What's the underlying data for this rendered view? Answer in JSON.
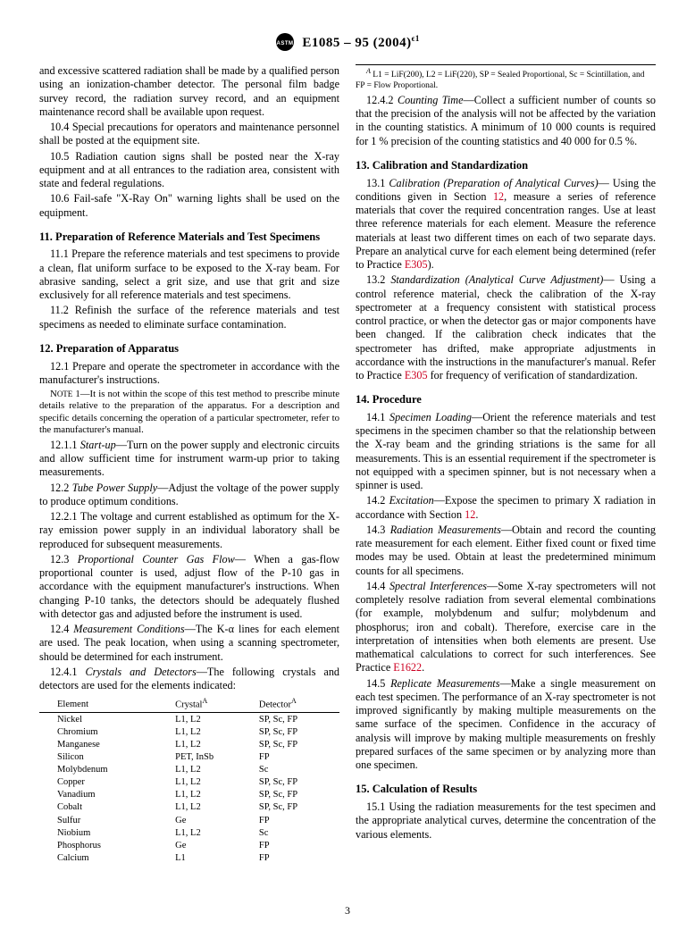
{
  "header": {
    "standard": "E1085 – 95  (2004)",
    "eps": "ϵ1"
  },
  "col1": {
    "intro1": "and excessive scattered radiation shall be made by a qualified person using an ionization-chamber detector. The personal film badge survey record, the radiation survey record, and an equipment maintenance record shall be available upon request.",
    "p104": "10.4 Special precautions for operators and maintenance personnel shall be posted at the equipment site.",
    "p105": "10.5 Radiation caution signs shall be posted near the X-ray equipment and at all entrances to the radiation area, consistent with state and federal regulations.",
    "p106": "10.6 Fail-safe \"X-Ray On\" warning lights shall be used on the equipment.",
    "s11title": "11.  Preparation of Reference Materials and Test Specimens",
    "p111": "11.1 Prepare the reference materials and test specimens to provide a clean, flat uniform surface to be exposed to the X-ray beam. For abrasive sanding, select a grit size, and use that grit and size exclusively for all reference materials and test specimens.",
    "p112": "11.2 Refinish the surface of the reference materials and test specimens as needed to eliminate surface contamination.",
    "s12title": "12.  Preparation of Apparatus",
    "p121": "12.1 Prepare and operate the spectrometer in accordance with the manufacturer's instructions.",
    "note1": "NOTE 1—It is not within the scope of this test method to prescribe minute details relative to the preparation of the apparatus. For a description and specific details concerning the operation of a particular spectrometer, refer to the manufacturer's manual.",
    "p1211i": "12.1.1 ",
    "p1211t": "Start-up",
    "p1211b": "—Turn on the power supply and electronic circuits and allow sufficient time for instrument warm-up prior to taking measurements.",
    "p122i": "12.2 ",
    "p122t": "Tube Power Supply",
    "p122b": "—Adjust the voltage of the power supply to produce optimum conditions.",
    "p1221": "12.2.1 The voltage and current established as optimum for the X-ray emission power supply in an individual laboratory shall be reproduced for subsequent measurements.",
    "p123i": "12.3 ",
    "p123t": "Proportional Counter Gas Flow",
    "p123b": "— When a gas-flow proportional counter is used, adjust flow of the P-10 gas in accordance with the equipment manufacturer's instructions. When changing P-10 tanks, the detectors should be adequately flushed with detector gas and adjusted before the instrument is used.",
    "p124i": "12.4 ",
    "p124t": "Measurement Conditions",
    "p124b": "—The K-α lines for each element are used. The peak location, when using a scanning spectrometer, should be determined for each instrument.",
    "p1241i": "12.4.1 ",
    "p1241t": "Crystals and Detectors",
    "p1241b": "—The following crystals and detectors are used for the elements indicated:"
  },
  "table": {
    "headers": [
      "Element",
      "Crystal",
      "Detector"
    ],
    "rows": [
      [
        "Nickel",
        "L1, L2",
        "SP, Sc, FP"
      ],
      [
        "Chromium",
        "L1, L2",
        "SP, Sc, FP"
      ],
      [
        "Manganese",
        "L1, L2",
        "SP, Sc, FP"
      ],
      [
        "Silicon",
        "PET, InSb",
        "FP"
      ],
      [
        "Molybdenum",
        "L1, L2",
        "Sc"
      ],
      [
        "Copper",
        "L1, L2",
        "SP, Sc, FP"
      ],
      [
        "Vanadium",
        "L1, L2",
        "SP, Sc, FP"
      ],
      [
        "Cobalt",
        "L1, L2",
        "SP, Sc, FP"
      ],
      [
        "Sulfur",
        "Ge",
        "FP"
      ],
      [
        "Niobium",
        "L1, L2",
        "Sc"
      ],
      [
        "Phosphorus",
        "Ge",
        "FP"
      ],
      [
        "Calcium",
        "L1",
        "FP"
      ]
    ]
  },
  "col2": {
    "footA": " L1 = LiF(200), L2 = LiF(220), SP = Sealed Proportional, Sc = Scintillation, and FP = Flow Proportional.",
    "p1242i": "12.4.2 ",
    "p1242t": "Counting Time",
    "p1242b": "—Collect a sufficient number of counts so that the precision of the analysis will not be affected by the variation in the counting statistics. A minimum of 10 000 counts is required for 1 % precision of the counting statistics and 40 000 for 0.5 %.",
    "s13title": "13.  Calibration and Standardization",
    "p131i": "13.1 ",
    "p131t": "Calibration (Preparation of Analytical Curves)",
    "p131a": "— Using the conditions given in Section ",
    "p131l1": "12",
    "p131b": ", measure a series of reference materials that cover the required concentration ranges. Use at least three reference materials for each element. Measure the reference materials at least two different times on each of two separate days. Prepare an analytical curve for each element being determined (refer to Practice ",
    "p131l2": "E305",
    "p131c": ").",
    "p132i": "13.2 ",
    "p132t": "Standardization (Analytical Curve Adjustment)",
    "p132a": "— Using a control reference material, check the calibration of the X-ray spectrometer at a frequency consistent with statistical process control practice, or when the detector gas or major components have been changed. If the calibration check indicates that the spectrometer has drifted, make appropriate adjustments in accordance with the instructions in the manufacturer's manual. Refer to Practice ",
    "p132l": "E305",
    "p132b": " for frequency of verification of standardization.",
    "s14title": "14.  Procedure",
    "p141i": "14.1 ",
    "p141t": "Specimen Loading",
    "p141b": "—Orient the reference materials and test specimens in the specimen chamber so that the relationship between the X-ray beam and the grinding striations is the same for all measurements. This is an essential requirement if the spectrometer is not equipped with a specimen spinner, but is not necessary when a spinner is used.",
    "p142i": "14.2 ",
    "p142t": "Excitation",
    "p142a": "—Expose the specimen to primary X radiation in accordance with Section ",
    "p142l": "12",
    "p142b": ".",
    "p143i": "14.3 ",
    "p143t": "Radiation Measurements",
    "p143b": "—Obtain and record the counting rate measurement for each element. Either fixed count or fixed time modes may be used. Obtain at least the predetermined minimum counts for all specimens.",
    "p144i": "14.4 ",
    "p144t": "Spectral Interferences",
    "p144a": "—Some X-ray spectrometers will not completely resolve radiation from several elemental combinations (for example, molybdenum and sulfur; molybdenum and phosphorus; iron and cobalt). Therefore, exercise care in the interpretation of intensities when both elements are present. Use mathematical calculations to correct for such interferences. See Practice ",
    "p144l": "E1622",
    "p144b": ".",
    "p145i": "14.5 ",
    "p145t": "Replicate Measurements",
    "p145b": "—Make a single measurement on each test specimen. The performance of an X-ray spectrometer is not improved significantly by making multiple measurements on the same surface of the specimen. Confidence in the accuracy of analysis will improve by making multiple measurements on freshly prepared surfaces of the same specimen or by analyzing more than one specimen.",
    "s15title": "15.  Calculation of Results",
    "p151": "15.1 Using the radiation measurements for the test specimen and the appropriate analytical curves, determine the concentration of the various elements."
  },
  "pagenum": "3"
}
